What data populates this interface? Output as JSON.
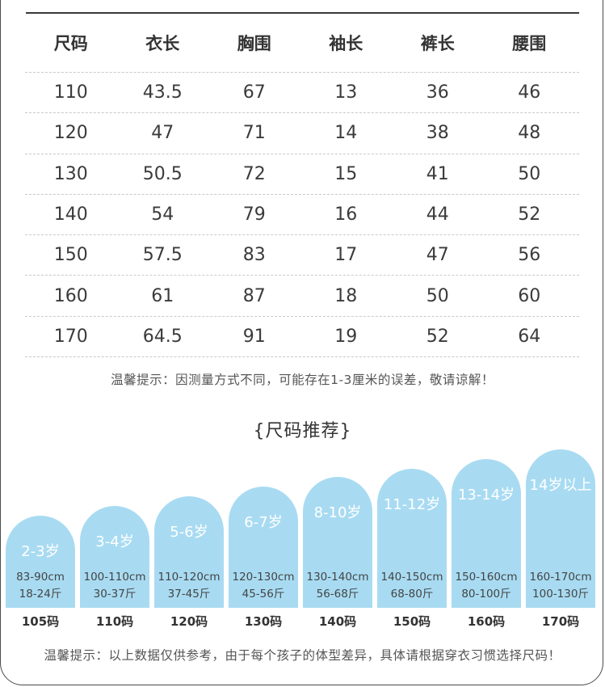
{
  "table": {
    "headers": [
      "尺码",
      "衣长",
      "胸围",
      "袖长",
      "裤长",
      "腰围"
    ],
    "rows": [
      [
        "110",
        "43.5",
        "67",
        "13",
        "36",
        "46"
      ],
      [
        "120",
        "47",
        "71",
        "14",
        "38",
        "48"
      ],
      [
        "130",
        "50.5",
        "72",
        "15",
        "41",
        "50"
      ],
      [
        "140",
        "54",
        "79",
        "16",
        "44",
        "52"
      ],
      [
        "150",
        "57.5",
        "83",
        "17",
        "47",
        "56"
      ],
      [
        "160",
        "61",
        "87",
        "18",
        "50",
        "60"
      ],
      [
        "170",
        "64.5",
        "91",
        "19",
        "52",
        "64"
      ]
    ]
  },
  "note_measure": "温馨提示：因测量方式不同，可能存在1-3厘米的误差，敬请谅解！",
  "recommend_title": "{尺码推荐}",
  "recommendations": [
    {
      "age": "2-3岁",
      "height": "83-90cm",
      "weight": "18-24斤",
      "size": "105码"
    },
    {
      "age": "3-4岁",
      "height": "100-110cm",
      "weight": "30-37斤",
      "size": "110码"
    },
    {
      "age": "5-6岁",
      "height": "110-120cm",
      "weight": "37-45斤",
      "size": "120码"
    },
    {
      "age": "6-7岁",
      "height": "120-130cm",
      "weight": "45-56斤",
      "size": "130码"
    },
    {
      "age": "8-10岁",
      "height": "130-140cm",
      "weight": "56-68斤",
      "size": "140码"
    },
    {
      "age": "11-12岁",
      "height": "140-150cm",
      "weight": "68-80斤",
      "size": "150码"
    },
    {
      "age": "13-14岁",
      "height": "150-160cm",
      "weight": "80-100斤",
      "size": "160码"
    },
    {
      "age": "14岁以上",
      "height": "160-170cm",
      "weight": "100-130斤",
      "size": "170码"
    }
  ],
  "note_advice": "温馨提示：以上数据仅供参考，由于每个孩子的体型差异，具体请根据穿衣习惯选择尺码！",
  "colors": {
    "card_fill": "#a8dbf2",
    "card_text": "#ffffff"
  }
}
